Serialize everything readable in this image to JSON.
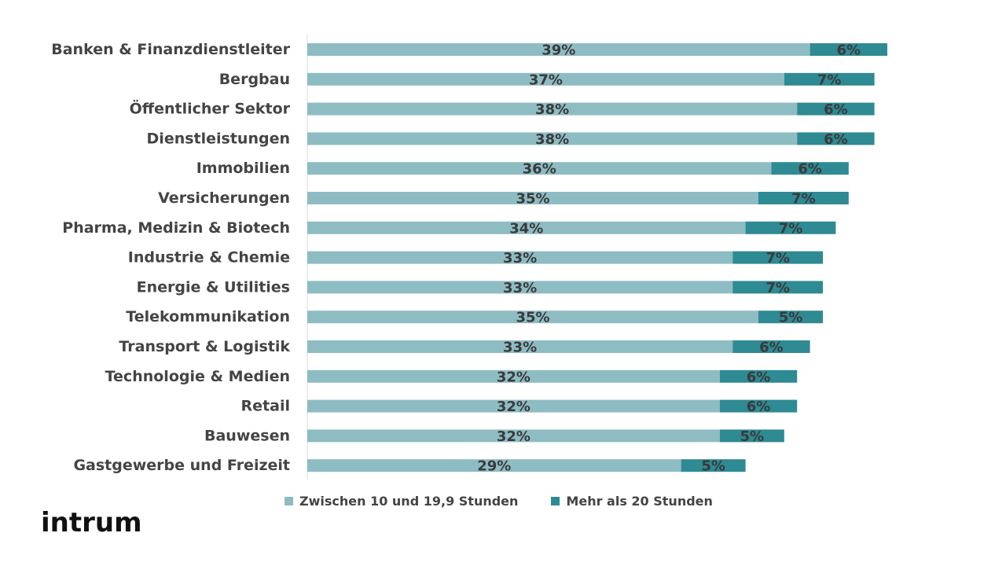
{
  "logo": {
    "text": "intrum"
  },
  "chart_data": {
    "type": "bar",
    "orientation": "horizontal",
    "stacked": true,
    "categories": [
      "Banken & Finanzdienstleiter",
      "Bergbau",
      "Öffentlicher Sektor",
      "Dienstleistungen",
      "Immobilien",
      "Versicherungen",
      "Pharma, Medizin & Biotech",
      "Industrie & Chemie",
      "Energie & Utilities",
      "Telekommunikation",
      "Transport & Logistik",
      "Technologie & Medien",
      "Retail",
      "Bauwesen",
      "Gastgewerbe und Freizeit"
    ],
    "series": [
      {
        "name": "Zwischen 10 und 19,9 Stunden",
        "color": "#8ebcc3",
        "values": [
          39,
          37,
          38,
          38,
          36,
          35,
          34,
          33,
          33,
          35,
          33,
          32,
          32,
          32,
          29
        ],
        "labels": [
          "39%",
          "37%",
          "38%",
          "38%",
          "36%",
          "35%",
          "34%",
          "33%",
          "33%",
          "35%",
          "33%",
          "32%",
          "32%",
          "32%",
          "29%"
        ]
      },
      {
        "name": "Mehr als 20 Stunden",
        "color": "#2e8a93",
        "values": [
          6,
          7,
          6,
          6,
          6,
          7,
          7,
          7,
          7,
          5,
          6,
          6,
          6,
          5,
          5
        ],
        "labels": [
          "6%",
          "7%",
          "6%",
          "6%",
          "6%",
          "7%",
          "7%",
          "7%",
          "7%",
          "5%",
          "6%",
          "6%",
          "6%",
          "5%",
          "5%"
        ]
      }
    ],
    "xlim": [
      0,
      50
    ],
    "grid": false,
    "legend_position": "bottom"
  }
}
